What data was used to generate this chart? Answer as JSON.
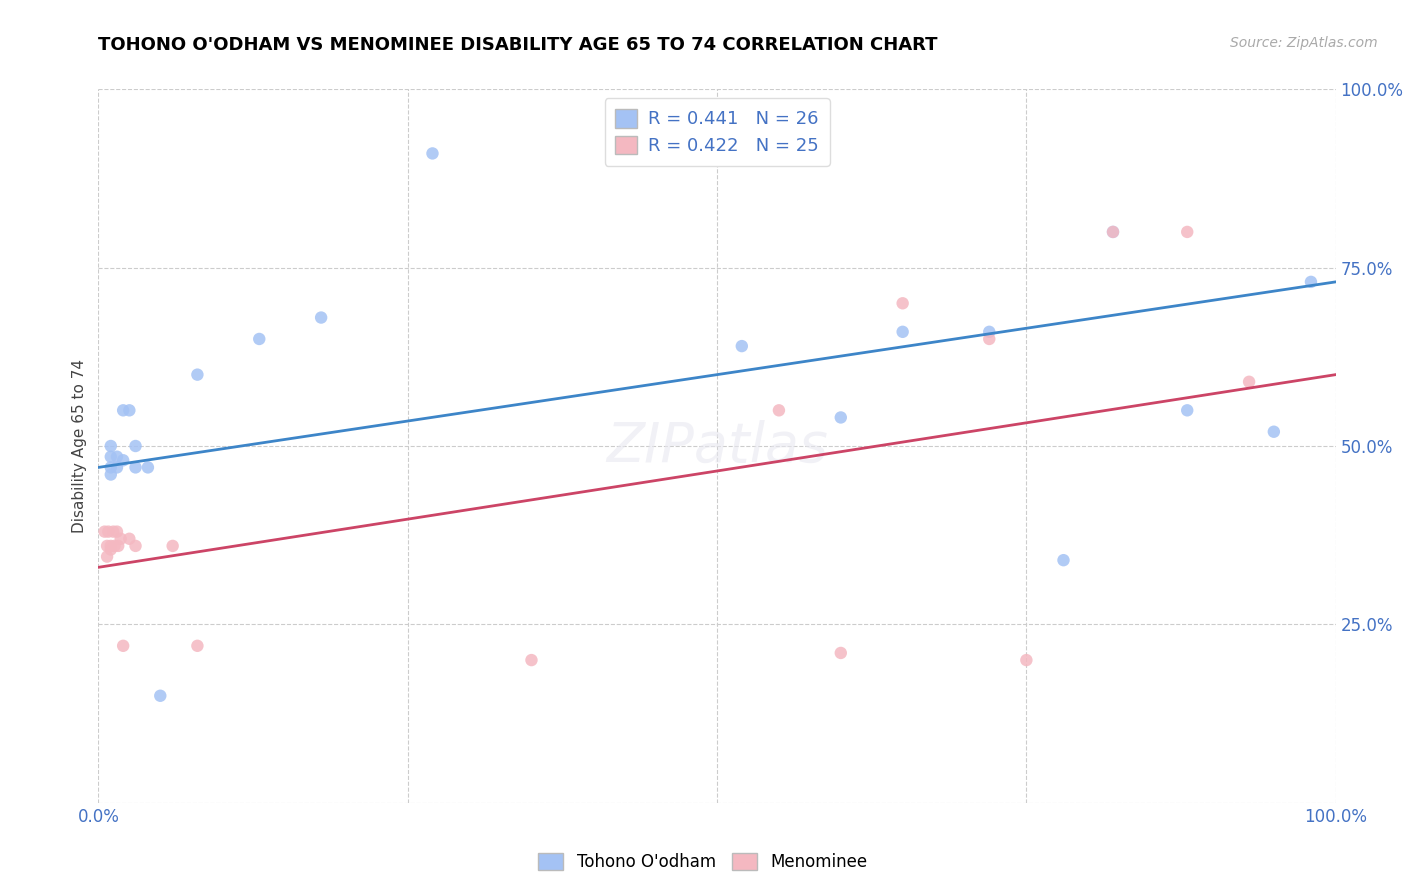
{
  "title": "TOHONO O'ODHAM VS MENOMINEE DISABILITY AGE 65 TO 74 CORRELATION CHART",
  "source": "Source: ZipAtlas.com",
  "ylabel": "Disability Age 65 to 74",
  "legend_label1": "Tohono O'odham",
  "legend_label2": "Menominee",
  "r1": 0.441,
  "n1": 26,
  "r2": 0.422,
  "n2": 25,
  "blue_color": "#a4c2f4",
  "pink_color": "#f4b8c1",
  "blue_line_color": "#3d85c8",
  "pink_line_color": "#cc4466",
  "axis_label_color": "#4472c4",
  "xlim": [
    0.0,
    1.0
  ],
  "ylim": [
    0.0,
    1.0
  ],
  "xticks": [
    0.0,
    0.25,
    0.5,
    0.75,
    1.0
  ],
  "yticks": [
    0.0,
    0.25,
    0.5,
    0.75,
    1.0
  ],
  "xticklabels": [
    "0.0%",
    "",
    "",
    "",
    "100.0%"
  ],
  "yticklabels": [
    "",
    "25.0%",
    "50.0%",
    "75.0%",
    "100.0%"
  ],
  "blue_x": [
    0.01,
    0.01,
    0.01,
    0.01,
    0.015,
    0.015,
    0.02,
    0.02,
    0.025,
    0.03,
    0.03,
    0.04,
    0.05,
    0.08,
    0.13,
    0.18,
    0.27,
    0.52,
    0.6,
    0.65,
    0.72,
    0.78,
    0.82,
    0.88,
    0.95,
    0.98
  ],
  "blue_y": [
    0.47,
    0.485,
    0.46,
    0.5,
    0.47,
    0.485,
    0.55,
    0.48,
    0.55,
    0.47,
    0.5,
    0.47,
    0.15,
    0.6,
    0.65,
    0.68,
    0.91,
    0.64,
    0.54,
    0.66,
    0.66,
    0.34,
    0.8,
    0.55,
    0.52,
    0.73
  ],
  "pink_x": [
    0.005,
    0.007,
    0.007,
    0.008,
    0.01,
    0.01,
    0.012,
    0.013,
    0.015,
    0.016,
    0.018,
    0.02,
    0.025,
    0.03,
    0.06,
    0.08,
    0.35,
    0.55,
    0.6,
    0.65,
    0.72,
    0.75,
    0.82,
    0.88,
    0.93
  ],
  "pink_y": [
    0.38,
    0.36,
    0.345,
    0.38,
    0.355,
    0.36,
    0.38,
    0.36,
    0.38,
    0.36,
    0.37,
    0.22,
    0.37,
    0.36,
    0.36,
    0.22,
    0.2,
    0.55,
    0.21,
    0.7,
    0.65,
    0.2,
    0.8,
    0.8,
    0.59
  ],
  "blue_line_x0": 0.0,
  "blue_line_y0": 0.47,
  "blue_line_x1": 1.0,
  "blue_line_y1": 0.73,
  "pink_line_x0": 0.0,
  "pink_line_y0": 0.33,
  "pink_line_x1": 1.0,
  "pink_line_y1": 0.6,
  "marker_size": 80,
  "background_color": "#ffffff",
  "grid_color": "#cccccc",
  "title_color": "#000000"
}
